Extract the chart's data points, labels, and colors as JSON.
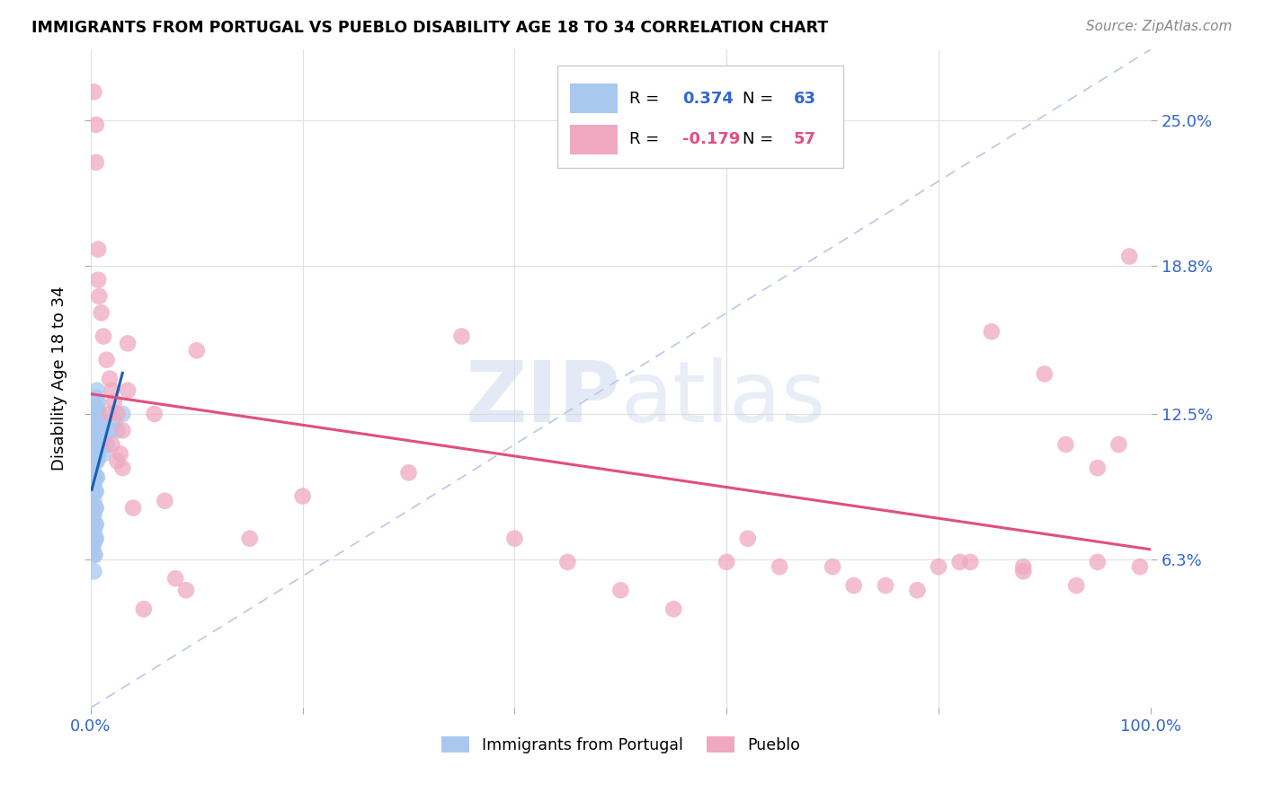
{
  "title": "IMMIGRANTS FROM PORTUGAL VS PUEBLO DISABILITY AGE 18 TO 34 CORRELATION CHART",
  "source": "Source: ZipAtlas.com",
  "ylabel": "Disability Age 18 to 34",
  "xlim": [
    0,
    1
  ],
  "ylim": [
    0,
    0.28
  ],
  "yticks": [
    0.063,
    0.125,
    0.188,
    0.25
  ],
  "yticklabels": [
    "6.3%",
    "12.5%",
    "18.8%",
    "25.0%"
  ],
  "legend_blue_label": "Immigrants from Portugal",
  "legend_pink_label": "Pueblo",
  "R_blue": "0.374",
  "N_blue": "63",
  "R_pink": "-0.179",
  "N_pink": "57",
  "blue_color": "#a8c8f0",
  "pink_color": "#f0a8c0",
  "blue_line_color": "#1a5fb4",
  "pink_line_color": "#e0507a",
  "diag_color": "#b8c8e8",
  "watermark_zip": "ZIP",
  "watermark_atlas": "atlas",
  "blue_dots": [
    [
      0.001,
      0.092
    ],
    [
      0.001,
      0.085
    ],
    [
      0.001,
      0.078
    ],
    [
      0.002,
      0.105
    ],
    [
      0.002,
      0.098
    ],
    [
      0.002,
      0.092
    ],
    [
      0.002,
      0.082
    ],
    [
      0.002,
      0.075
    ],
    [
      0.002,
      0.068
    ],
    [
      0.003,
      0.115
    ],
    [
      0.003,
      0.108
    ],
    [
      0.003,
      0.1
    ],
    [
      0.003,
      0.095
    ],
    [
      0.003,
      0.088
    ],
    [
      0.003,
      0.082
    ],
    [
      0.003,
      0.075
    ],
    [
      0.003,
      0.07
    ],
    [
      0.003,
      0.065
    ],
    [
      0.003,
      0.058
    ],
    [
      0.004,
      0.128
    ],
    [
      0.004,
      0.12
    ],
    [
      0.004,
      0.112
    ],
    [
      0.004,
      0.105
    ],
    [
      0.004,
      0.098
    ],
    [
      0.004,
      0.092
    ],
    [
      0.004,
      0.085
    ],
    [
      0.004,
      0.078
    ],
    [
      0.004,
      0.072
    ],
    [
      0.004,
      0.065
    ],
    [
      0.005,
      0.132
    ],
    [
      0.005,
      0.125
    ],
    [
      0.005,
      0.118
    ],
    [
      0.005,
      0.112
    ],
    [
      0.005,
      0.105
    ],
    [
      0.005,
      0.098
    ],
    [
      0.005,
      0.092
    ],
    [
      0.005,
      0.085
    ],
    [
      0.005,
      0.078
    ],
    [
      0.005,
      0.072
    ],
    [
      0.006,
      0.135
    ],
    [
      0.006,
      0.128
    ],
    [
      0.006,
      0.12
    ],
    [
      0.006,
      0.112
    ],
    [
      0.006,
      0.105
    ],
    [
      0.006,
      0.098
    ],
    [
      0.007,
      0.13
    ],
    [
      0.007,
      0.122
    ],
    [
      0.007,
      0.115
    ],
    [
      0.007,
      0.108
    ],
    [
      0.008,
      0.125
    ],
    [
      0.008,
      0.118
    ],
    [
      0.008,
      0.112
    ],
    [
      0.009,
      0.12
    ],
    [
      0.009,
      0.115
    ],
    [
      0.01,
      0.118
    ],
    [
      0.01,
      0.112
    ],
    [
      0.012,
      0.115
    ],
    [
      0.012,
      0.108
    ],
    [
      0.015,
      0.112
    ],
    [
      0.018,
      0.118
    ],
    [
      0.022,
      0.122
    ],
    [
      0.025,
      0.118
    ],
    [
      0.03,
      0.125
    ]
  ],
  "pink_dots": [
    [
      0.003,
      0.262
    ],
    [
      0.005,
      0.248
    ],
    [
      0.005,
      0.232
    ],
    [
      0.007,
      0.195
    ],
    [
      0.007,
      0.182
    ],
    [
      0.008,
      0.175
    ],
    [
      0.01,
      0.168
    ],
    [
      0.012,
      0.158
    ],
    [
      0.015,
      0.148
    ],
    [
      0.018,
      0.14
    ],
    [
      0.018,
      0.125
    ],
    [
      0.02,
      0.135
    ],
    [
      0.02,
      0.112
    ],
    [
      0.022,
      0.13
    ],
    [
      0.025,
      0.125
    ],
    [
      0.025,
      0.105
    ],
    [
      0.028,
      0.108
    ],
    [
      0.03,
      0.118
    ],
    [
      0.03,
      0.102
    ],
    [
      0.035,
      0.155
    ],
    [
      0.035,
      0.135
    ],
    [
      0.04,
      0.085
    ],
    [
      0.05,
      0.042
    ],
    [
      0.06,
      0.125
    ],
    [
      0.07,
      0.088
    ],
    [
      0.08,
      0.055
    ],
    [
      0.09,
      0.05
    ],
    [
      0.1,
      0.152
    ],
    [
      0.15,
      0.072
    ],
    [
      0.2,
      0.09
    ],
    [
      0.3,
      0.1
    ],
    [
      0.35,
      0.158
    ],
    [
      0.4,
      0.072
    ],
    [
      0.45,
      0.062
    ],
    [
      0.5,
      0.05
    ],
    [
      0.55,
      0.042
    ],
    [
      0.6,
      0.062
    ],
    [
      0.62,
      0.072
    ],
    [
      0.65,
      0.06
    ],
    [
      0.7,
      0.06
    ],
    [
      0.72,
      0.052
    ],
    [
      0.75,
      0.052
    ],
    [
      0.78,
      0.05
    ],
    [
      0.8,
      0.06
    ],
    [
      0.82,
      0.062
    ],
    [
      0.83,
      0.062
    ],
    [
      0.85,
      0.16
    ],
    [
      0.88,
      0.06
    ],
    [
      0.88,
      0.058
    ],
    [
      0.9,
      0.142
    ],
    [
      0.92,
      0.112
    ],
    [
      0.93,
      0.052
    ],
    [
      0.95,
      0.102
    ],
    [
      0.95,
      0.062
    ],
    [
      0.97,
      0.112
    ],
    [
      0.98,
      0.192
    ],
    [
      0.99,
      0.06
    ]
  ]
}
